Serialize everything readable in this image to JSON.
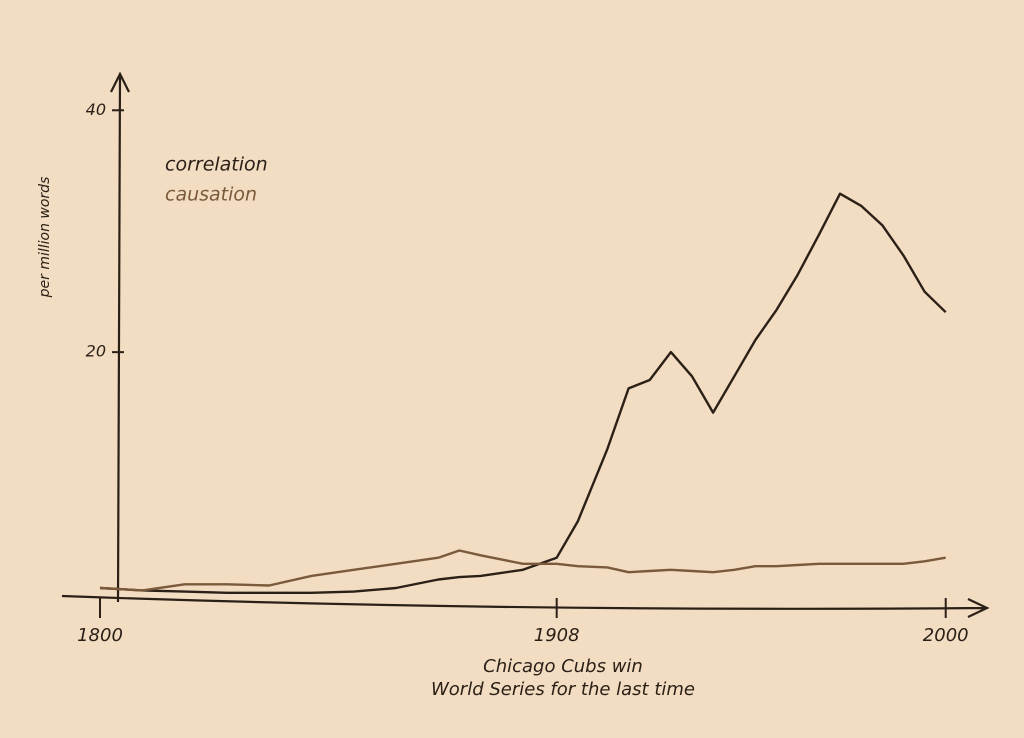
{
  "chart_data": {
    "type": "line",
    "ylabel": "per million words",
    "annotation": [
      "Chicago Cubs win",
      "World Series for the last time"
    ],
    "x": [
      1800,
      1810,
      1820,
      1830,
      1840,
      1850,
      1860,
      1870,
      1880,
      1885,
      1890,
      1900,
      1908,
      1913,
      1920,
      1925,
      1930,
      1935,
      1940,
      1945,
      1950,
      1955,
      1960,
      1965,
      1970,
      1975,
      1980,
      1985,
      1990,
      1995,
      2000
    ],
    "series": [
      {
        "name": "correlation",
        "color": "#2b2017",
        "values": [
          0.5,
          0.3,
          0.2,
          0.1,
          0.1,
          0.1,
          0.2,
          0.5,
          1.2,
          1.4,
          1.5,
          2,
          3,
          6,
          12,
          17,
          17.7,
          20,
          18,
          15,
          18,
          21,
          23.5,
          26.4,
          29.7,
          33.1,
          32.1,
          30.5,
          28,
          25,
          23.3
        ]
      },
      {
        "name": "causation",
        "color": "#7a5a3a",
        "values": [
          0.5,
          0.3,
          0.8,
          0.8,
          0.7,
          1.5,
          2,
          2.5,
          3,
          3.6,
          3.2,
          2.5,
          2.5,
          2.3,
          2.2,
          1.8,
          1.9,
          2.0,
          1.9,
          1.8,
          2.0,
          2.3,
          2.3,
          2.4,
          2.5,
          2.5,
          2.5,
          2.5,
          2.5,
          2.7,
          3
        ]
      }
    ],
    "xlim": [
      1800,
      2010
    ],
    "xticks": [
      1800,
      1908,
      2000
    ],
    "ylim": [
      0,
      43
    ],
    "yticks": [
      20,
      40
    ]
  }
}
